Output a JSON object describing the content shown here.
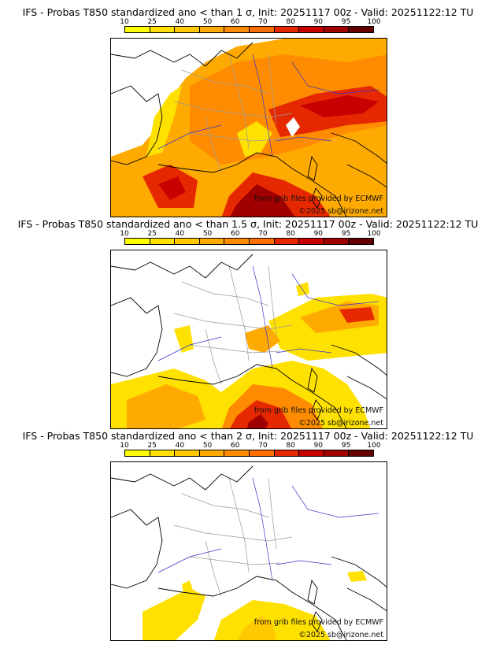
{
  "colorbar": {
    "ticks": [
      "10",
      "25",
      "40",
      "50",
      "60",
      "70",
      "80",
      "90",
      "95",
      "100"
    ],
    "colors": [
      "#ffff00",
      "#ffe100",
      "#ffc800",
      "#ffaa00",
      "#ff8c00",
      "#ff6e00",
      "#e62800",
      "#c80000",
      "#a00000",
      "#640000"
    ]
  },
  "colors": {
    "land_outline": "#000000",
    "borders": "#999999",
    "rivers": "#3333cc"
  },
  "panels": [
    {
      "title": "IFS - Probas T850  standardized ano < than 1 σ, Init: 20251117 00z - Valid: 20251122:12 TU",
      "credit_line1": "from grib files provided by ECMWF",
      "credit_line2": "©2025 sb@irizone.net",
      "coverage": "high"
    },
    {
      "title": "IFS - Probas T850  standardized ano < than 1.5 σ, Init: 20251117 00z - Valid: 20251122:12 TU",
      "credit_line1": "from grib files provided by ECMWF",
      "credit_line2": "©2025 sb@irizone.net",
      "coverage": "medium"
    },
    {
      "title": "IFS - Probas T850  standardized ano < than 2 σ, Init: 20251117 00z - Valid: 20251122:12 TU",
      "credit_line1": "from grib files provided by ECMWF",
      "credit_line2": "©2025 sb@irizone.net",
      "coverage": "low"
    }
  ]
}
